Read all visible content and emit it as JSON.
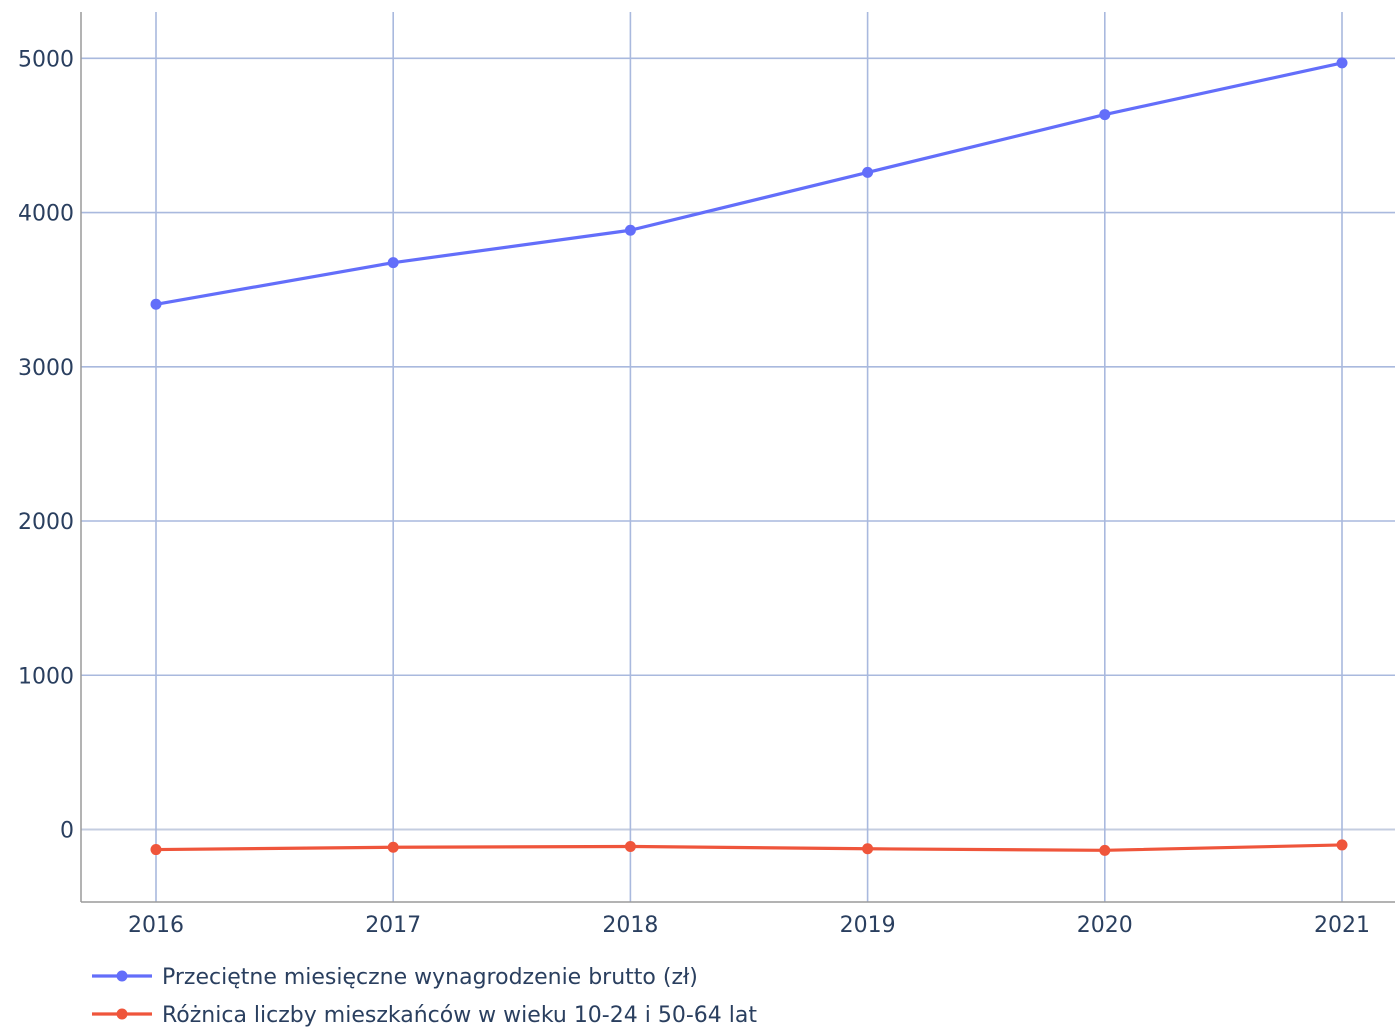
{
  "chart_data": {
    "type": "line",
    "title": "",
    "xlabel": "",
    "ylabel": "",
    "categories": [
      "2016",
      "2017",
      "2018",
      "2019",
      "2020",
      "2021"
    ],
    "ylim": [
      -470,
      5300
    ],
    "yticks": [
      0,
      1000,
      2000,
      3000,
      4000,
      5000
    ],
    "grid": true,
    "legend_position": "bottom-left",
    "series": [
      {
        "name": "Przeciętne miesięczne wynagrodzenie brutto (zł)",
        "color": "#636efa",
        "values": [
          3405,
          3675,
          3885,
          4260,
          4635,
          4970
        ]
      },
      {
        "name": "Różnica liczby mieszkańców w wieku 10-24 i 50-64 lat",
        "color": "#ef553b",
        "values": [
          -130,
          -115,
          -110,
          -125,
          -135,
          -100
        ]
      }
    ]
  }
}
